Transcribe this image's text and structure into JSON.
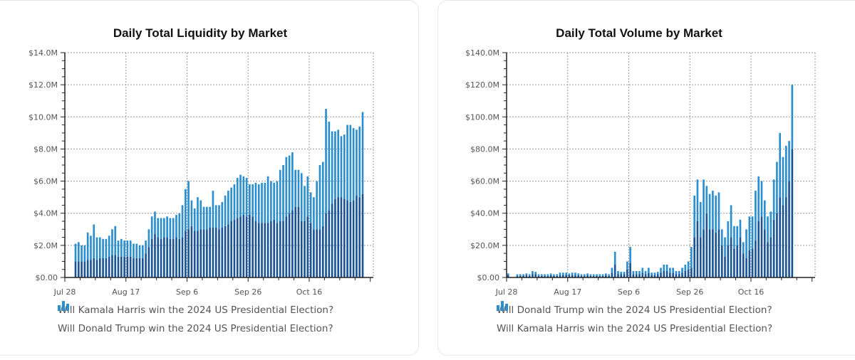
{
  "colors": {
    "dark": "#1a5497",
    "light": "#2b8fcf",
    "grid": "#9a9a9a",
    "axis": "#222222"
  },
  "chart_data": [
    {
      "id": "liquidity",
      "type": "bar",
      "stacked": true,
      "title": "Daily Total Liquidity by Market",
      "yticks": [
        "$0.00",
        "$2.0M",
        "$4.0M",
        "$6.0M",
        "$8.0M",
        "$10.0M",
        "$12.0M",
        "$14.0M"
      ],
      "ylim": [
        0,
        14
      ],
      "xticks": [
        "Jul 28",
        "Aug 17",
        "Sep 6",
        "Sep 26",
        "Oct 16"
      ],
      "x_range_days": [
        0,
        101
      ],
      "xtick_days": [
        0,
        20,
        40,
        60,
        80
      ],
      "grid": true,
      "legend_position": "bottom-left",
      "series": [
        {
          "name": "Will Kamala Harris win the 2024 US Presidential Election?",
          "color": "dark",
          "start_day": 3,
          "values": [
            1.0,
            1.0,
            1.0,
            1.0,
            1.1,
            1.1,
            1.2,
            1.1,
            1.2,
            1.2,
            1.2,
            1.3,
            1.4,
            1.4,
            1.3,
            1.3,
            1.3,
            1.3,
            1.3,
            1.2,
            1.2,
            1.2,
            1.2,
            1.5,
            1.9,
            2.4,
            2.7,
            2.5,
            2.4,
            2.5,
            2.5,
            2.4,
            2.4,
            2.5,
            2.4,
            2.5,
            2.9,
            3.0,
            3.2,
            2.9,
            2.9,
            3.0,
            3.0,
            3.0,
            3.1,
            3.1,
            3.1,
            3.0,
            3.1,
            3.2,
            3.3,
            3.5,
            3.6,
            3.7,
            3.8,
            3.9,
            3.8,
            3.9,
            3.8,
            3.5,
            3.4,
            3.4,
            3.4,
            3.4,
            3.5,
            3.6,
            3.4,
            3.5,
            3.5,
            3.8,
            4.0,
            4.2,
            4.4,
            4.4,
            3.5,
            3.5,
            3.8,
            3.4,
            3.0,
            3.0,
            3.0,
            3.2,
            4.0,
            4.2,
            4.6,
            4.9,
            5.0,
            5.0,
            4.9,
            4.8,
            4.7,
            4.8,
            5.1,
            5.0,
            5.2
          ]
        },
        {
          "name": "Will Donald Trump win the 2024 US Presidential Election?",
          "color": "light",
          "start_day": 3,
          "values": [
            1.1,
            1.2,
            1.0,
            1.0,
            1.7,
            1.5,
            2.1,
            1.4,
            1.3,
            1.2,
            1.2,
            1.3,
            1.6,
            1.8,
            1.0,
            1.1,
            1.0,
            1.0,
            1.0,
            0.9,
            0.9,
            0.8,
            0.8,
            0.8,
            1.1,
            1.4,
            1.4,
            1.2,
            1.3,
            1.2,
            1.3,
            1.3,
            1.3,
            1.4,
            1.6,
            2.0,
            2.6,
            3.0,
            1.6,
            1.4,
            2.1,
            1.8,
            1.4,
            1.4,
            1.3,
            2.3,
            1.4,
            1.5,
            1.6,
            1.9,
            2.1,
            2.1,
            2.2,
            2.5,
            2.6,
            2.4,
            2.4,
            1.9,
            2.0,
            2.4,
            2.4,
            2.5,
            2.5,
            2.9,
            2.5,
            2.3,
            2.6,
            3.2,
            3.5,
            3.7,
            3.6,
            3.6,
            2.3,
            2.3,
            3.0,
            2.2,
            2.5,
            1.9,
            2.0,
            3.0,
            4.0,
            4.0,
            6.5,
            5.5,
            4.5,
            4.2,
            4.2,
            3.8,
            4.0,
            4.7,
            4.8,
            4.5,
            4.1,
            4.4,
            5.1
          ]
        }
      ]
    },
    {
      "id": "volume",
      "type": "bar",
      "stacked": true,
      "title": "Daily Total Volume by Market",
      "yticks": [
        "$0.00",
        "$20.0M",
        "$40.0M",
        "$60.0M",
        "$80.0M",
        "$100.0M",
        "$120.0M",
        "$140.0M"
      ],
      "ylim": [
        0,
        140
      ],
      "xticks": [
        "Jul 28",
        "Aug 17",
        "Sep 6",
        "Sep 26",
        "Oct 16"
      ],
      "x_range_days": [
        0,
        101
      ],
      "xtick_days": [
        0,
        20,
        40,
        60,
        80
      ],
      "grid": true,
      "legend_position": "bottom-left",
      "series": [
        {
          "name": "Will Donald Trump win the 2024 US Presidential Election?",
          "color": "dark",
          "start_day": 0,
          "values": [
            1.5,
            0,
            0,
            1,
            1,
            1,
            1.5,
            1,
            2,
            2,
            1,
            1,
            1,
            1,
            1.5,
            1,
            1,
            1.5,
            1.5,
            1.5,
            1.5,
            1.5,
            1.5,
            1.5,
            1,
            1,
            1.5,
            1,
            1,
            1,
            1,
            1,
            1.5,
            1,
            3,
            8,
            2,
            2,
            2,
            5,
            9,
            2,
            2,
            2,
            3,
            2,
            3,
            1.5,
            1.5,
            2,
            3,
            4,
            4,
            3,
            3,
            2,
            2,
            3,
            4,
            5,
            6,
            25,
            35,
            25,
            30,
            40,
            30,
            30,
            28,
            30,
            20,
            13,
            20,
            25,
            18,
            20,
            25,
            15,
            12,
            17,
            18,
            23,
            35,
            38,
            30,
            22,
            25,
            36,
            40,
            50,
            45,
            50,
            60,
            80
          ]
        },
        {
          "name": "Will Kamala Harris win the 2024 US Presidential Election?",
          "color": "light",
          "start_day": 0,
          "values": [
            1,
            0,
            0,
            1,
            1,
            1,
            1,
            1,
            2,
            1.5,
            1,
            1,
            1,
            1,
            1,
            1,
            1,
            1.5,
            1.5,
            1.5,
            1,
            1.5,
            1.5,
            1,
            1,
            1,
            1,
            1,
            1,
            1,
            1,
            1,
            1,
            1,
            3,
            8,
            2,
            1.5,
            1.5,
            5,
            10,
            2,
            2,
            2,
            3,
            2,
            3,
            1.5,
            1.5,
            1.5,
            3,
            4,
            4,
            3,
            3,
            2,
            2,
            3,
            4,
            5,
            13,
            26,
            26,
            22,
            31,
            17,
            22,
            24,
            23,
            23,
            10,
            12,
            15,
            20,
            14,
            12,
            11,
            7,
            18,
            21,
            20,
            31,
            28,
            22,
            18,
            16,
            16,
            25,
            32,
            40,
            30,
            32,
            25,
            40
          ]
        }
      ]
    }
  ]
}
